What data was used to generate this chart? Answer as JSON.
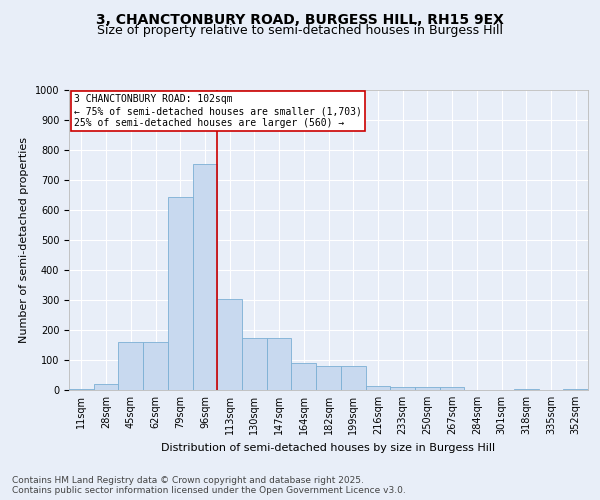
{
  "title1": "3, CHANCTONBURY ROAD, BURGESS HILL, RH15 9EX",
  "title2": "Size of property relative to semi-detached houses in Burgess Hill",
  "xlabel": "Distribution of semi-detached houses by size in Burgess Hill",
  "ylabel": "Number of semi-detached properties",
  "categories": [
    "11sqm",
    "28sqm",
    "45sqm",
    "62sqm",
    "79sqm",
    "96sqm",
    "113sqm",
    "130sqm",
    "147sqm",
    "164sqm",
    "182sqm",
    "199sqm",
    "216sqm",
    "233sqm",
    "250sqm",
    "267sqm",
    "284sqm",
    "301sqm",
    "318sqm",
    "335sqm",
    "352sqm"
  ],
  "values": [
    5,
    20,
    160,
    160,
    645,
    755,
    305,
    175,
    175,
    90,
    80,
    80,
    15,
    10,
    10,
    10,
    0,
    0,
    4,
    0,
    4
  ],
  "bar_color": "#c8d9ef",
  "bar_edge_color": "#7bafd4",
  "vline_index": 6,
  "vline_color": "#cc0000",
  "ylim": [
    0,
    1000
  ],
  "yticks": [
    0,
    100,
    200,
    300,
    400,
    500,
    600,
    700,
    800,
    900,
    1000
  ],
  "annotation_title": "3 CHANCTONBURY ROAD: 102sqm",
  "annotation_line1": "← 75% of semi-detached houses are smaller (1,703)",
  "annotation_line2": "25% of semi-detached houses are larger (560) →",
  "annotation_box_color": "#ffffff",
  "annotation_box_edge": "#cc0000",
  "footer1": "Contains HM Land Registry data © Crown copyright and database right 2025.",
  "footer2": "Contains public sector information licensed under the Open Government Licence v3.0.",
  "fig_bg_color": "#e8eef8",
  "plot_bg_color": "#e8eef8",
  "title1_fontsize": 10,
  "title2_fontsize": 9,
  "tick_fontsize": 7,
  "ylabel_fontsize": 8,
  "xlabel_fontsize": 8,
  "annotation_fontsize": 7,
  "footer_fontsize": 6.5
}
